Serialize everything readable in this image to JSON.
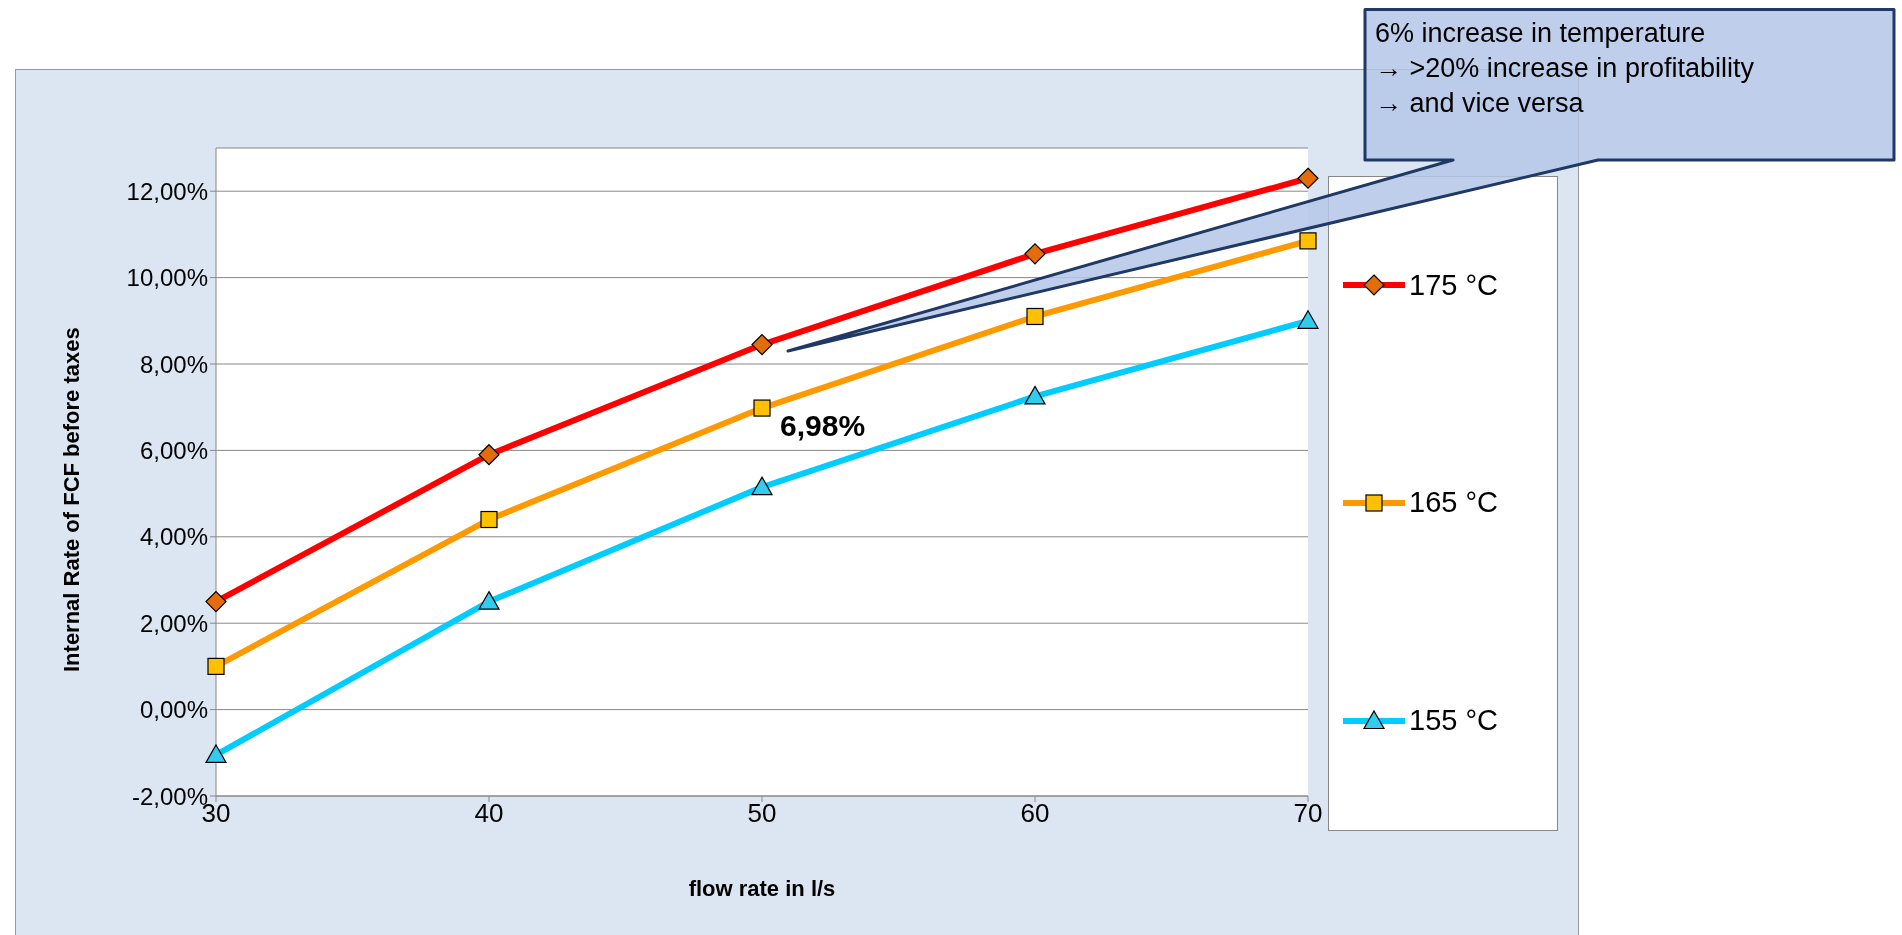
{
  "chart_data": {
    "type": "line",
    "xlabel": "flow rate in l/s",
    "ylabel": "Internal Rate of FCF before taxes",
    "categories": [
      "30",
      "40",
      "50",
      "60",
      "70"
    ],
    "series": [
      {
        "name": "175 °C",
        "color": "#ff0000",
        "marker": "diamond",
        "values": [
          2.5,
          5.9,
          8.45,
          10.55,
          12.3
        ]
      },
      {
        "name": "165 °C",
        "color": "#ff9900",
        "marker": "square",
        "values": [
          1.0,
          4.4,
          6.98,
          9.1,
          10.85
        ],
        "value_labels": [
          null,
          null,
          "6,98%",
          null,
          null
        ]
      },
      {
        "name": "155 °C",
        "color": "#00ccff",
        "marker": "triangle",
        "values": [
          -1.05,
          2.5,
          5.15,
          7.25,
          9.0
        ]
      }
    ],
    "ylim": [
      -2,
      13
    ],
    "yticks": [
      {
        "value": -2,
        "label": "-2,00%"
      },
      {
        "value": 0,
        "label": "0,00%"
      },
      {
        "value": 2,
        "label": "2,00%"
      },
      {
        "value": 4,
        "label": "4,00%"
      },
      {
        "value": 6,
        "label": "6,00%"
      },
      {
        "value": 8,
        "label": "8,00%"
      },
      {
        "value": 10,
        "label": "10,00%"
      },
      {
        "value": 12,
        "label": "12,00%"
      }
    ],
    "grid": "y",
    "legend": "right",
    "line_style": "solid",
    "annotations": [
      "6% increase in temperature\n→  >20% increase in profitability\n→  and vice versa"
    ]
  }
}
